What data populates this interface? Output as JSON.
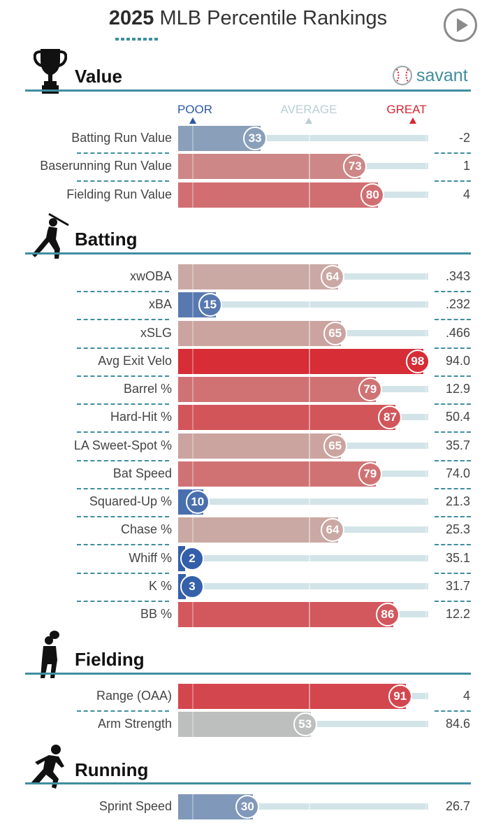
{
  "header": {
    "year": "2025",
    "title": "MLB Percentile Rankings"
  },
  "brand": {
    "name": "savant"
  },
  "legend": {
    "poor": "POOR",
    "average": "AVERAGE",
    "great": "GREAT"
  },
  "colors": {
    "accent": "#3f8e9f",
    "poor": "#2d5aa8",
    "average": "#b9cfd3",
    "great": "#d72631"
  },
  "chart_data": {
    "type": "bar",
    "title": "2025 MLB Percentile Rankings",
    "xlim": [
      0,
      100
    ],
    "sections": [
      {
        "name": "Value",
        "metrics": [
          {
            "label": "Batting Run Value",
            "percentile": 33,
            "value": "-2"
          },
          {
            "label": "Baserunning Run Value",
            "percentile": 73,
            "value": "1"
          },
          {
            "label": "Fielding Run Value",
            "percentile": 80,
            "value": "4"
          }
        ]
      },
      {
        "name": "Batting",
        "metrics": [
          {
            "label": "xwOBA",
            "percentile": 64,
            "value": ".343"
          },
          {
            "label": "xBA",
            "percentile": 15,
            "value": ".232"
          },
          {
            "label": "xSLG",
            "percentile": 65,
            "value": ".466"
          },
          {
            "label": "Avg Exit Velo",
            "percentile": 98,
            "value": "94.0"
          },
          {
            "label": "Barrel %",
            "percentile": 79,
            "value": "12.9"
          },
          {
            "label": "Hard-Hit %",
            "percentile": 87,
            "value": "50.4"
          },
          {
            "label": "LA Sweet-Spot %",
            "percentile": 65,
            "value": "35.7"
          },
          {
            "label": "Bat Speed",
            "percentile": 79,
            "value": "74.0"
          },
          {
            "label": "Squared-Up %",
            "percentile": 10,
            "value": "21.3"
          },
          {
            "label": "Chase %",
            "percentile": 64,
            "value": "25.3"
          },
          {
            "label": "Whiff %",
            "percentile": 2,
            "value": "35.1"
          },
          {
            "label": "K %",
            "percentile": 3,
            "value": "31.7"
          },
          {
            "label": "BB %",
            "percentile": 86,
            "value": "12.2"
          }
        ]
      },
      {
        "name": "Fielding",
        "metrics": [
          {
            "label": "Range (OAA)",
            "percentile": 91,
            "value": "4"
          },
          {
            "label": "Arm Strength",
            "percentile": 53,
            "value": "84.6"
          }
        ]
      },
      {
        "name": "Running",
        "metrics": [
          {
            "label": "Sprint Speed",
            "percentile": 30,
            "value": "26.7"
          }
        ]
      }
    ]
  }
}
